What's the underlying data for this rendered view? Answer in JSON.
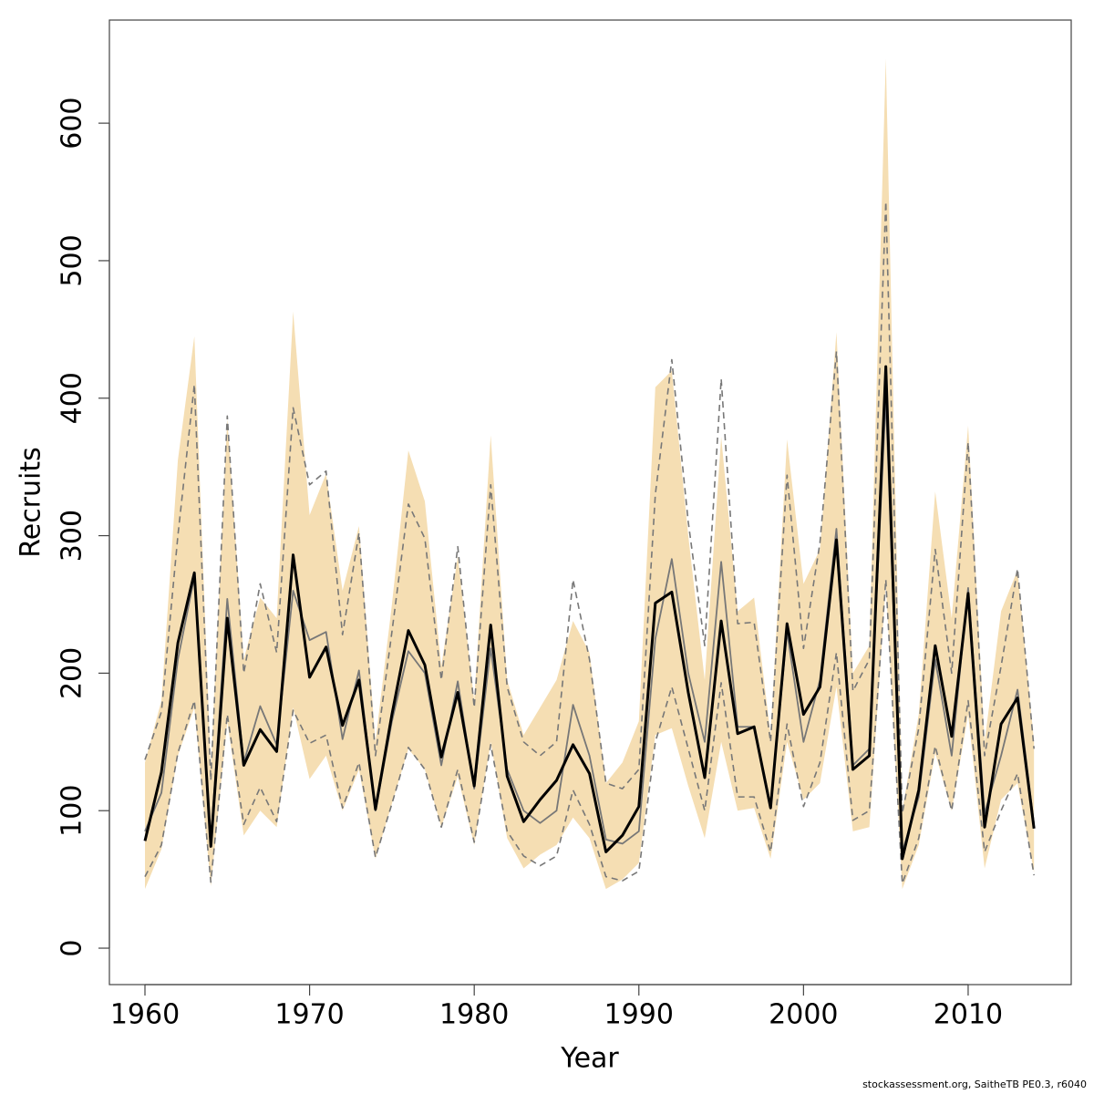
{
  "chart_data": {
    "type": "line",
    "xlabel": "Year",
    "ylabel": "Recruits",
    "footer": "stockassessment.org, SaitheTB  PE0.3, r6040",
    "x": [
      1960,
      1961,
      1962,
      1963,
      1964,
      1965,
      1966,
      1967,
      1968,
      1969,
      1970,
      1971,
      1972,
      1973,
      1974,
      1975,
      1976,
      1977,
      1978,
      1979,
      1980,
      1981,
      1982,
      1983,
      1984,
      1985,
      1986,
      1987,
      1988,
      1989,
      1990,
      1991,
      1992,
      1993,
      1994,
      1995,
      1996,
      1997,
      1998,
      1999,
      2000,
      2001,
      2002,
      2003,
      2004,
      2005,
      2006,
      2007,
      2008,
      2009,
      2010,
      2011,
      2012,
      2013,
      2014
    ],
    "band": {
      "color": "#f5deb3",
      "upper": [
        135,
        180,
        355,
        445,
        130,
        385,
        210,
        255,
        240,
        463,
        315,
        345,
        260,
        307,
        150,
        250,
        362,
        325,
        205,
        285,
        180,
        373,
        195,
        155,
        175,
        195,
        238,
        215,
        120,
        135,
        165,
        408,
        420,
        300,
        195,
        372,
        245,
        255,
        155,
        370,
        265,
        290,
        448,
        200,
        220,
        647,
        100,
        170,
        332,
        240,
        380,
        150,
        245,
        275,
        150
      ],
      "lower": [
        43,
        72,
        140,
        175,
        45,
        165,
        82,
        100,
        88,
        175,
        123,
        140,
        100,
        130,
        65,
        105,
        145,
        130,
        88,
        125,
        75,
        150,
        80,
        58,
        68,
        75,
        95,
        80,
        43,
        50,
        62,
        155,
        160,
        118,
        80,
        150,
        100,
        102,
        65,
        150,
        108,
        120,
        190,
        85,
        88,
        265,
        43,
        75,
        142,
        100,
        170,
        58,
        108,
        120,
        55
      ]
    },
    "series": [
      {
        "color": "#777777",
        "dashed": true,
        "width": 1.6,
        "values": [
          137,
          172,
          300,
          410,
          122,
          387,
          200,
          265,
          215,
          393,
          337,
          347,
          228,
          302,
          140,
          230,
          323,
          298,
          195,
          292,
          175,
          337,
          190,
          150,
          140,
          150,
          268,
          210,
          120,
          116,
          130,
          330,
          428,
          310,
          220,
          414,
          236,
          237,
          150,
          344,
          218,
          295,
          434,
          187,
          210,
          543,
          98,
          160,
          290,
          200,
          368,
          140,
          205,
          276,
          145
        ]
      },
      {
        "color": "#777777",
        "dashed": true,
        "width": 1.6,
        "values": [
          52,
          75,
          142,
          180,
          48,
          170,
          90,
          117,
          92,
          173,
          149,
          155,
          102,
          135,
          66,
          105,
          146,
          130,
          88,
          130,
          77,
          148,
          85,
          67,
          60,
          67,
          115,
          90,
          52,
          49,
          56,
          150,
          190,
          145,
          100,
          193,
          110,
          110,
          70,
          163,
          103,
          135,
          215,
          93,
          100,
          268,
          47,
          80,
          147,
          100,
          180,
          70,
          100,
          127,
          53
        ]
      },
      {
        "color": "#777777",
        "dashed": false,
        "width": 1.8,
        "values": [
          85,
          113,
          210,
          270,
          78,
          254,
          135,
          176,
          148,
          260,
          224,
          230,
          152,
          202,
          100,
          165,
          216,
          200,
          133,
          194,
          116,
          218,
          130,
          100,
          91,
          100,
          177,
          140,
          79,
          76,
          85,
          225,
          283,
          200,
          150,
          281,
          161,
          161,
          104,
          230,
          150,
          195,
          305,
          133,
          145,
          400,
          70,
          110,
          210,
          140,
          262,
          98,
          140,
          188,
          90
        ]
      },
      {
        "color": "#000000",
        "dashed": false,
        "width": 3,
        "values": [
          78,
          128,
          222,
          273,
          74,
          240,
          133,
          159,
          143,
          286,
          197,
          219,
          162,
          195,
          101,
          170,
          231,
          206,
          139,
          186,
          118,
          235,
          125,
          92,
          108,
          122,
          148,
          127,
          70,
          82,
          103,
          251,
          259,
          186,
          124,
          238,
          156,
          161,
          102,
          236,
          170,
          190,
          297,
          130,
          140,
          423,
          65,
          115,
          220,
          154,
          258,
          88,
          163,
          182,
          87
        ]
      }
    ],
    "xlim": [
      1957.84,
      2016.26
    ],
    "ylim": [
      -26.5,
      675
    ],
    "xticks": [
      1960,
      1970,
      1980,
      1990,
      2000,
      2010
    ],
    "yticks": [
      0,
      100,
      200,
      300,
      400,
      500,
      600
    ]
  }
}
